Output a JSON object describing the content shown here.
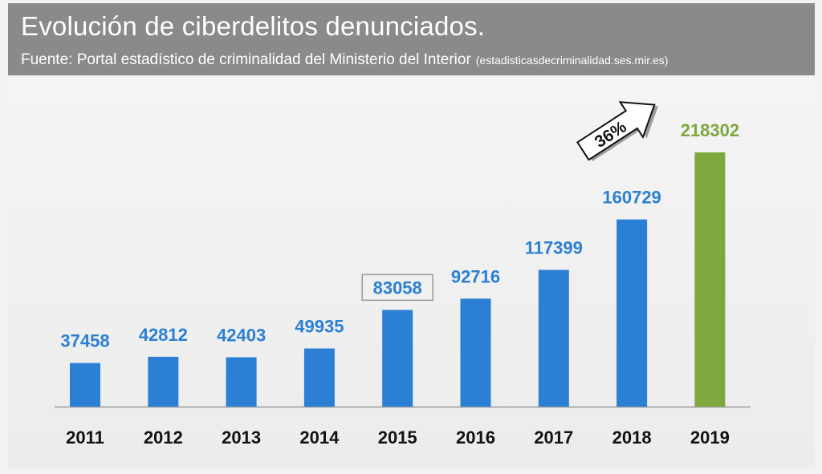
{
  "header": {
    "title": "Evolución de ciberdelitos denunciados.",
    "subtitle": "Fuente: Portal estadístico de criminalidad del Ministerio del Interior",
    "source_url": "(estadisticasdecriminalidad.ses.mir.es)"
  },
  "colors": {
    "bar": "#2b7fd4",
    "highlight_bar": "#7ea83d",
    "label": "#2b7fd4",
    "highlight_label": "#7ea83d",
    "header_bg": "#8a8a8a"
  },
  "annotation": {
    "text": "36%"
  },
  "chart_data": {
    "type": "bar",
    "title": "Evolución de ciberdelitos denunciados.",
    "xlabel": "",
    "ylabel": "",
    "categories": [
      "2011",
      "2012",
      "2013",
      "2014",
      "2015",
      "2016",
      "2017",
      "2018",
      "2019"
    ],
    "values": [
      37458,
      42812,
      42403,
      49935,
      83058,
      92716,
      117399,
      160729,
      218302
    ],
    "ylim": [
      0,
      218302
    ],
    "highlight_index": 8,
    "boxed_index": 4,
    "grid": false
  }
}
